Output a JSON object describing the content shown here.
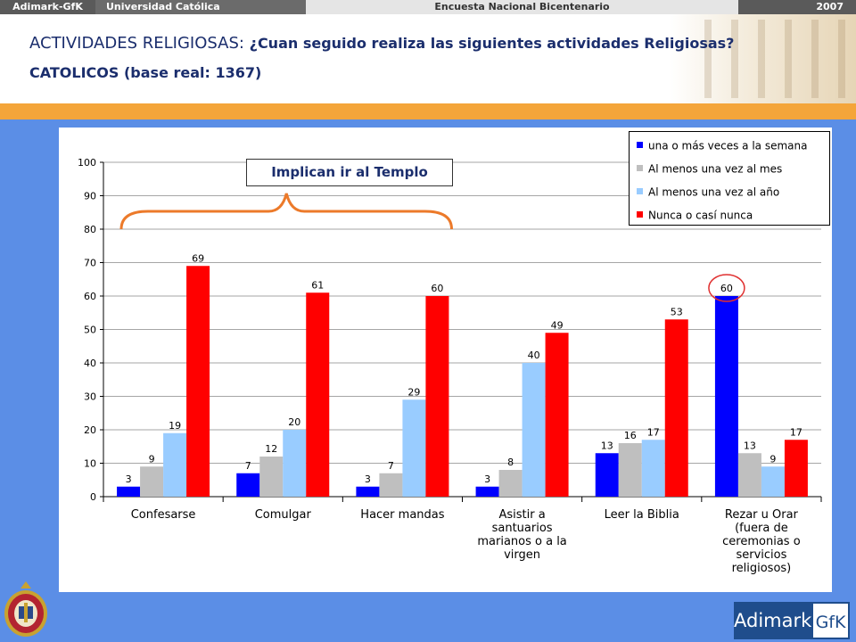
{
  "topbar": {
    "brand": "Adimark-GfK",
    "university": "Universidad Católica",
    "survey": "Encuesta Nacional Bicentenario",
    "year": "2007"
  },
  "header": {
    "title_prefix": "ACTIVIDADES RELIGIOSAS: ",
    "title_question": "¿Cuan seguido realiza las siguientes actividades Religiosas?",
    "subtitle": "CATOLICOS (base real: 1367)"
  },
  "annotation": {
    "label": "Implican ir al Templo"
  },
  "footer": {
    "logo_left": "Adimark",
    "logo_right": "GfK"
  },
  "chart_data": {
    "type": "bar",
    "title": "",
    "xlabel": "",
    "ylabel": "",
    "ylim": [
      0,
      100
    ],
    "yticks": [
      0,
      10,
      20,
      30,
      40,
      50,
      60,
      70,
      80,
      90,
      100
    ],
    "grid": true,
    "legend_position": "top-right",
    "categories": [
      [
        "Confesarse"
      ],
      [
        "Comulgar"
      ],
      [
        "Hacer mandas"
      ],
      [
        "Asistir a",
        "santuarios",
        "marianos o a la",
        "virgen"
      ],
      [
        "Leer la Biblia"
      ],
      [
        "Rezar u Orar",
        "(fuera de",
        "ceremonias o",
        "servicios",
        "religiosos)"
      ]
    ],
    "series": [
      {
        "name": "una o más veces a la semana",
        "color": "#0000ff",
        "values": [
          3,
          7,
          3,
          3,
          13,
          60
        ]
      },
      {
        "name": "Al menos una vez al mes",
        "color": "#bfbfbf",
        "values": [
          9,
          12,
          7,
          8,
          16,
          13
        ]
      },
      {
        "name": "Al menos una vez al año",
        "color": "#99ccff",
        "values": [
          19,
          20,
          29,
          40,
          17,
          9
        ]
      },
      {
        "name": "Nunca o casí nunca",
        "color": "#ff0000",
        "values": [
          69,
          61,
          60,
          49,
          53,
          17
        ]
      }
    ],
    "highlight": {
      "series": 0,
      "category": 5
    }
  }
}
